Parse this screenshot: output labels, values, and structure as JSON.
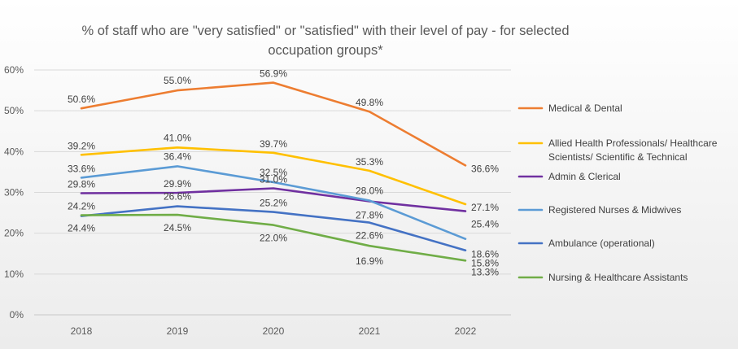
{
  "chart_data": {
    "type": "line",
    "title_line1": "% of staff who are \"very satisfied\" or \"satisfied\" with their level of pay - for selected",
    "title_line2": "occupation groups*",
    "categories": [
      "2018",
      "2019",
      "2020",
      "2021",
      "2022"
    ],
    "y_ticks": [
      "0%",
      "10%",
      "20%",
      "30%",
      "40%",
      "50%",
      "60%"
    ],
    "ylim": [
      0,
      60
    ],
    "xlabel": "",
    "ylabel": "",
    "grid": true,
    "legend_position": "right",
    "series": [
      {
        "name": "Medical & Dental",
        "legend_lines": [
          "Medical & Dental"
        ],
        "color": "#ED7D31",
        "values": [
          50.6,
          55.0,
          56.9,
          49.8,
          36.6
        ],
        "labels": [
          "50.6%",
          "55.0%",
          "56.9%",
          "49.8%",
          "36.6%"
        ]
      },
      {
        "name": "Allied Health Professionals/ Healthcare Scientists/ Scientific & Technical",
        "legend_lines": [
          "Allied Health Professionals/ Healthcare",
          "Scientists/ Scientific & Technical"
        ],
        "color": "#FFC000",
        "values": [
          39.2,
          41.0,
          39.7,
          35.3,
          27.1
        ],
        "labels": [
          "39.2%",
          "41.0%",
          "39.7%",
          "35.3%",
          "27.1%"
        ]
      },
      {
        "name": "Admin & Clerical",
        "legend_lines": [
          "Admin & Clerical"
        ],
        "color": "#7030A0",
        "values": [
          29.8,
          29.9,
          31.0,
          27.8,
          25.4
        ],
        "labels": [
          "29.8%",
          "29.9%",
          "31.0%",
          "27.8%",
          "25.4%"
        ]
      },
      {
        "name": "Registered Nurses & Midwives",
        "legend_lines": [
          "Registered Nurses & Midwives"
        ],
        "color": "#5B9BD5",
        "values": [
          33.6,
          36.4,
          32.5,
          28.0,
          18.6
        ],
        "labels": [
          "33.6%",
          "36.4%",
          "32.5%",
          "28.0%",
          "18.6%"
        ]
      },
      {
        "name": "Ambulance (operational)",
        "legend_lines": [
          "Ambulance (operational)"
        ],
        "color": "#4472C4",
        "values": [
          24.2,
          26.6,
          25.2,
          22.6,
          15.8
        ],
        "labels": [
          "24.2%",
          "26.6%",
          "25.2%",
          "22.6%",
          "15.8%"
        ]
      },
      {
        "name": "Nursing & Healthcare Assistants",
        "legend_lines": [
          "Nursing & Healthcare Assistants"
        ],
        "color": "#70AD47",
        "values": [
          24.4,
          24.5,
          22.0,
          16.9,
          13.3
        ],
        "labels": [
          "24.4%",
          "24.5%",
          "22.0%",
          "16.9%",
          "13.3%"
        ]
      }
    ]
  }
}
